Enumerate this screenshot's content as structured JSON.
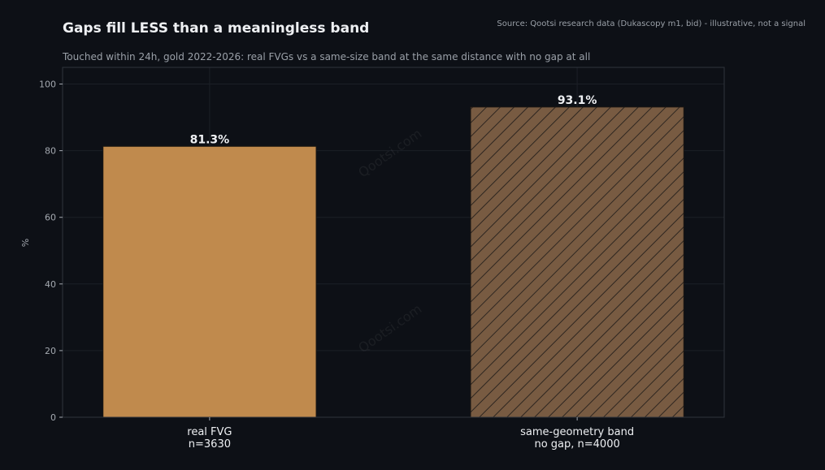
{
  "header": {
    "title": "Gaps fill LESS than a meaningless band",
    "subtitle": "Touched within 24h, gold 2022-2026: real FVGs vs a same-size band at the same distance with no gap at all",
    "source": "Source: Qootsi research data (Dukascopy m1, bid) - illustrative, not a signal"
  },
  "watermark": "Qootsi.com",
  "chart_data": {
    "type": "bar",
    "categories": [
      [
        "real FVG",
        "n=3630"
      ],
      [
        "same-geometry band",
        "no gap, n=4000"
      ]
    ],
    "values": [
      81.3,
      93.1
    ],
    "value_labels": [
      "81.3%",
      "93.1%"
    ],
    "ylabel": "%",
    "ylim": [
      0,
      105
    ],
    "yticks": [
      "0",
      "20",
      "40",
      "60",
      "80",
      "100"
    ],
    "grid": true,
    "bar_colors": [
      "#c08a4d",
      "#785b42"
    ],
    "bar_patterns": [
      "solid",
      "hatch"
    ],
    "hatch_color": "#2e2620",
    "background": "#0d1016",
    "axes_color": "#30343c",
    "grid_color": "#1b1f27"
  }
}
